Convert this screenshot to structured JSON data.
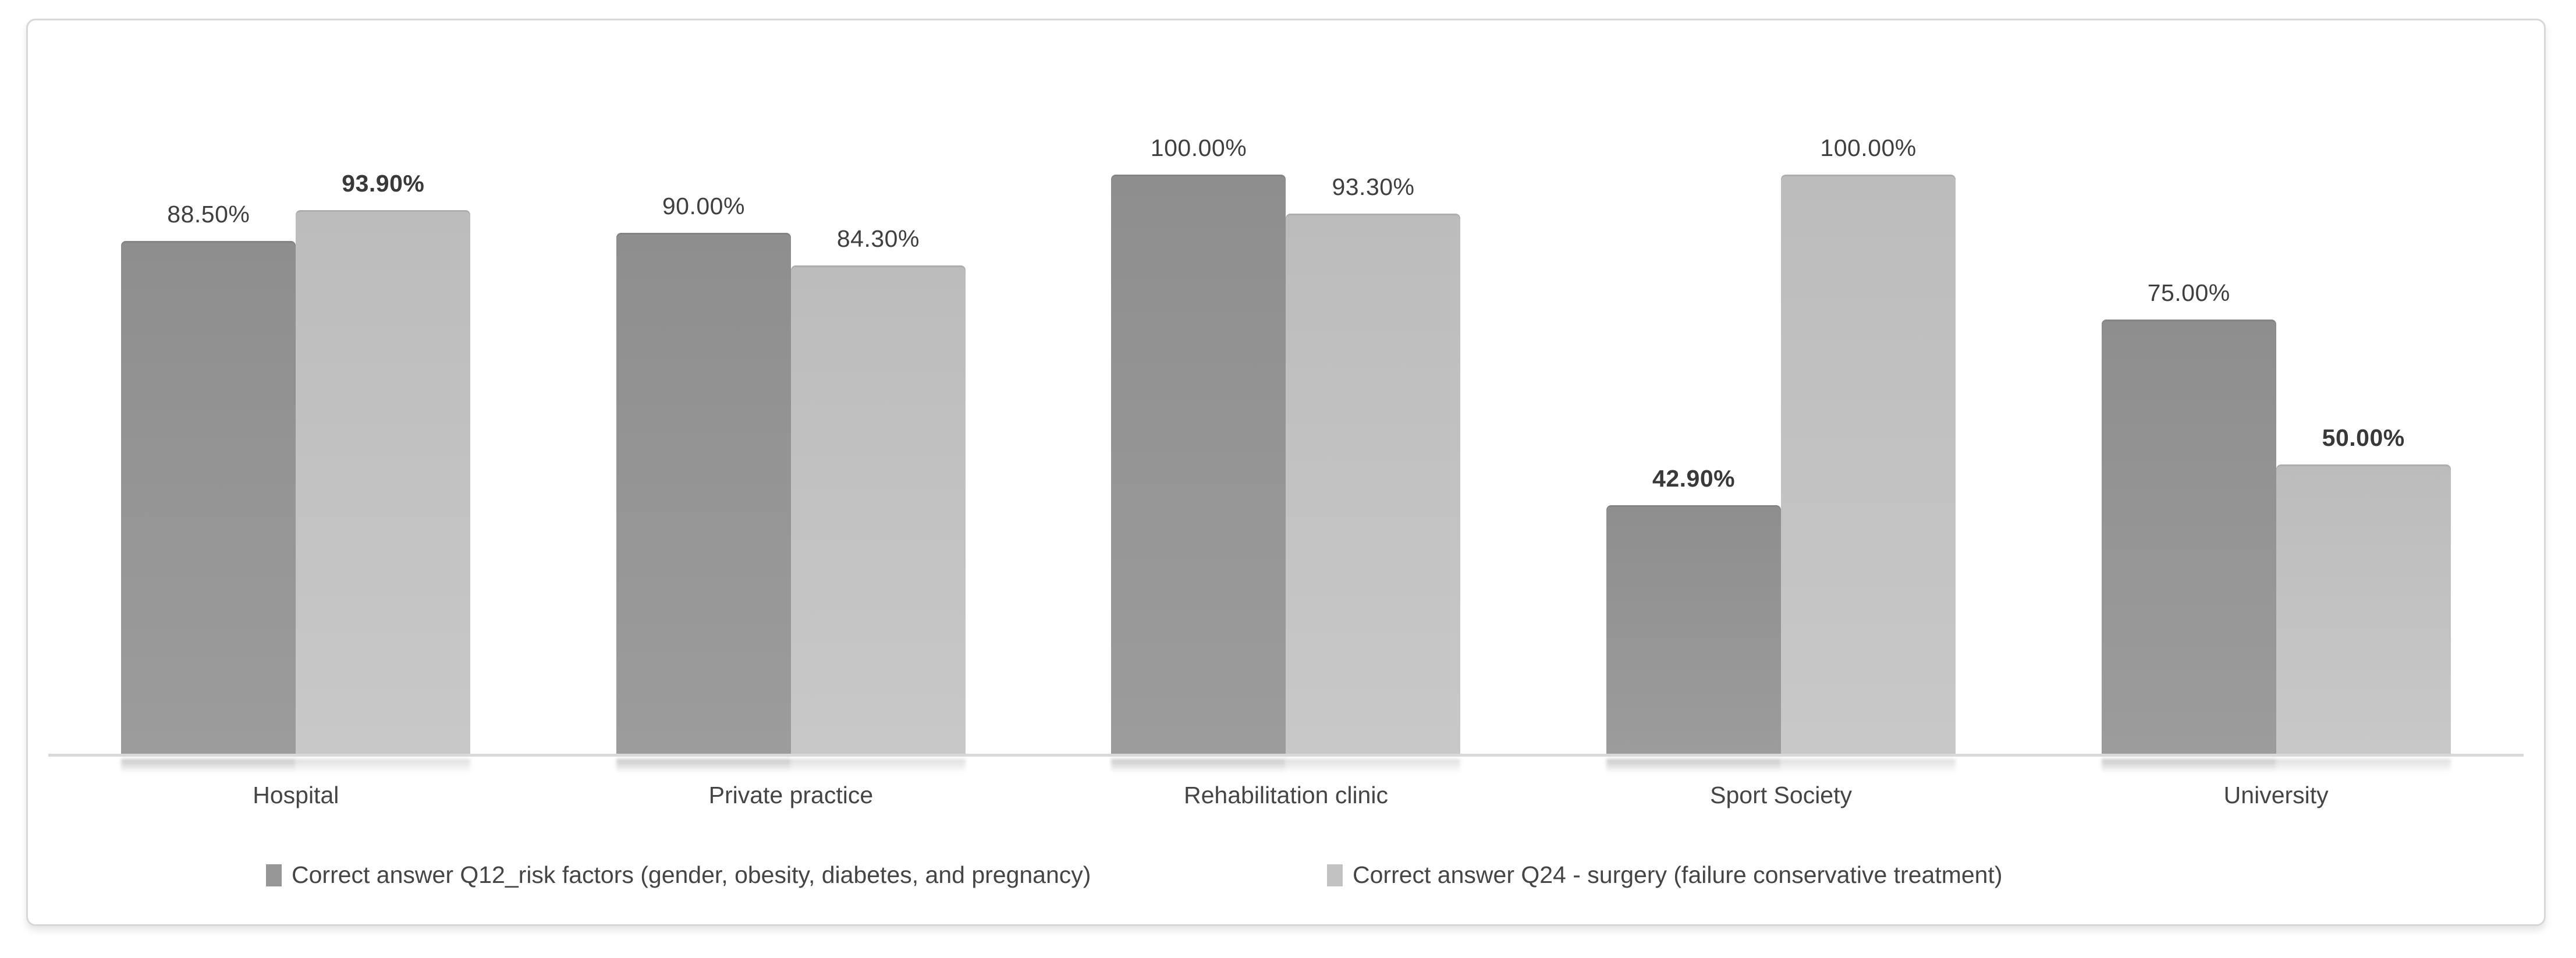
{
  "chart_data": {
    "type": "bar",
    "title": "",
    "xlabel": "",
    "ylabel": "",
    "unit": "%",
    "ylim": [
      0,
      100
    ],
    "grid": false,
    "legend_position": "bottom",
    "data_labels": true,
    "categories": [
      "Hospital",
      "Private practice",
      "Rehabilitation clinic",
      "Sport Society",
      "University"
    ],
    "series": [
      {
        "name": "Correct answer Q12_risk factors (gender, obesity, diabetes, and pregnancy)",
        "color": "#969696",
        "color_top": "#8e8e8e",
        "color_bottom": "#9c9c9c",
        "values": [
          88.5,
          90.0,
          100.0,
          42.9,
          75.0
        ],
        "labels": [
          "88.50%",
          "90.00%",
          "100.00%",
          "42.90%",
          "75.00%"
        ],
        "label_bold": [
          false,
          false,
          false,
          true,
          false
        ]
      },
      {
        "name": "Correct answer Q24 - surgery (failure conservative treatment)",
        "color": "#c2c2c2",
        "color_top": "#bcbcbc",
        "color_bottom": "#c8c8c8",
        "values": [
          93.9,
          84.3,
          93.3,
          100.0,
          50.0
        ],
        "labels": [
          "93.90%",
          "84.30%",
          "93.30%",
          "100.00%",
          "50.00%"
        ],
        "label_bold": [
          true,
          false,
          false,
          false,
          true
        ]
      }
    ],
    "style": {
      "axis_color": "#d9d9d9",
      "data_label_color": "#3f3f3f",
      "category_label_color": "#454545",
      "legend_text_color": "#454545",
      "frame_border_color": "#d8d8d8",
      "background": "#ffffff"
    },
    "legend_x_positions": [
      409,
      2232
    ]
  }
}
